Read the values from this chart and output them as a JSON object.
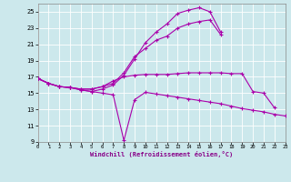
{
  "xlabel": "Windchill (Refroidissement éolien,°C)",
  "xlim": [
    0,
    23
  ],
  "ylim": [
    9,
    26
  ],
  "yticks": [
    9,
    11,
    13,
    15,
    17,
    19,
    21,
    23,
    25
  ],
  "xticks": [
    0,
    1,
    2,
    3,
    4,
    5,
    6,
    7,
    8,
    9,
    10,
    11,
    12,
    13,
    14,
    15,
    16,
    17,
    18,
    19,
    20,
    21,
    22,
    23
  ],
  "line_color": "#aa00aa",
  "bg_color": "#cce8ec",
  "grid_color": "#b8dde2",
  "lines": [
    {
      "x": [
        0,
        1,
        2,
        3,
        4,
        5,
        6,
        7,
        8,
        9,
        10,
        11,
        12,
        13,
        14,
        15,
        16,
        17,
        18,
        19,
        20,
        21,
        22,
        23
      ],
      "y": [
        16.8,
        16.2,
        15.8,
        15.7,
        15.4,
        15.2,
        15.0,
        14.8,
        9.2,
        14.2,
        15.1,
        14.9,
        14.7,
        14.5,
        14.3,
        14.1,
        13.9,
        13.7,
        13.4,
        13.1,
        12.9,
        12.7,
        12.4,
        12.2
      ]
    },
    {
      "x": [
        0,
        1,
        2,
        3,
        4,
        5,
        6,
        7,
        8,
        9,
        10,
        11,
        12,
        13,
        14,
        15,
        16,
        17
      ],
      "y": [
        16.8,
        16.2,
        15.8,
        15.7,
        15.4,
        15.2,
        15.5,
        16.0,
        17.2,
        19.2,
        21.2,
        22.5,
        23.5,
        24.8,
        25.2,
        25.5,
        25.0,
        22.5
      ]
    },
    {
      "x": [
        0,
        1,
        2,
        3,
        4,
        5,
        6,
        7,
        8,
        9,
        10,
        11,
        12,
        13,
        14,
        15,
        16,
        17
      ],
      "y": [
        16.8,
        16.2,
        15.8,
        15.7,
        15.5,
        15.5,
        15.8,
        16.2,
        17.5,
        19.5,
        20.5,
        21.5,
        22.0,
        23.0,
        23.5,
        23.8,
        24.0,
        22.2
      ]
    },
    {
      "x": [
        0,
        1,
        2,
        3,
        4,
        5,
        6,
        7,
        8,
        9,
        10,
        11,
        12,
        13,
        14,
        15,
        16,
        17,
        18,
        19,
        20,
        21,
        22
      ],
      "y": [
        16.8,
        16.2,
        15.8,
        15.7,
        15.5,
        15.5,
        15.8,
        16.5,
        17.0,
        17.2,
        17.3,
        17.3,
        17.3,
        17.4,
        17.5,
        17.5,
        17.5,
        17.5,
        17.4,
        17.4,
        15.2,
        15.0,
        13.2
      ]
    }
  ]
}
